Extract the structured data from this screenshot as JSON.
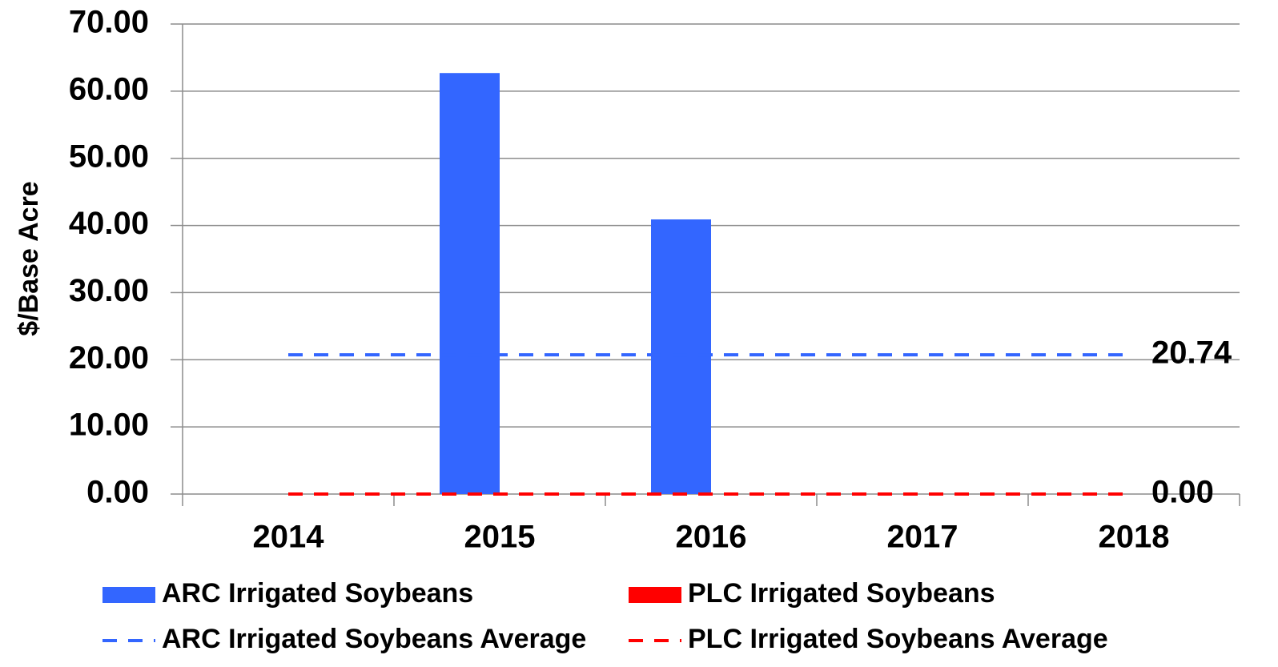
{
  "chart_data": {
    "type": "bar",
    "ylabel": "$/Base Acre",
    "categories": [
      "2014",
      "2015",
      "2016",
      "2017",
      "2018"
    ],
    "series": [
      {
        "name": "ARC Irrigated Soybeans",
        "color": "#3366ff",
        "kind": "bar",
        "values": [
          0,
          62.7,
          40.9,
          0,
          0
        ]
      },
      {
        "name": "PLC Irrigated Soybeans",
        "color": "#ff0000",
        "kind": "bar",
        "values": [
          0,
          0,
          0,
          0,
          0
        ]
      },
      {
        "name": "ARC Irrigated Soybeans Average",
        "color": "#3366ff",
        "kind": "dashed-line",
        "values": [
          20.74,
          20.74,
          20.74,
          20.74,
          20.74
        ]
      },
      {
        "name": "PLC Irrigated Soybeans Average",
        "color": "#ff0000",
        "kind": "dashed-line",
        "values": [
          0,
          0,
          0,
          0,
          0
        ],
        "value_labels": [
          null,
          null,
          null,
          null,
          "0.00"
        ]
      }
    ],
    "ylim": [
      0,
      70
    ],
    "yticks": [
      {
        "value": 0,
        "label": "0.00"
      },
      {
        "value": 10,
        "label": "10.00"
      },
      {
        "value": 20,
        "label": "20.00"
      },
      {
        "value": 30,
        "label": "30.00"
      },
      {
        "value": 40,
        "label": "40.00"
      },
      {
        "value": 50,
        "label": "50.00"
      },
      {
        "value": 60,
        "label": "60.00"
      },
      {
        "value": 70,
        "label": "70.00"
      }
    ],
    "grid": true
  }
}
